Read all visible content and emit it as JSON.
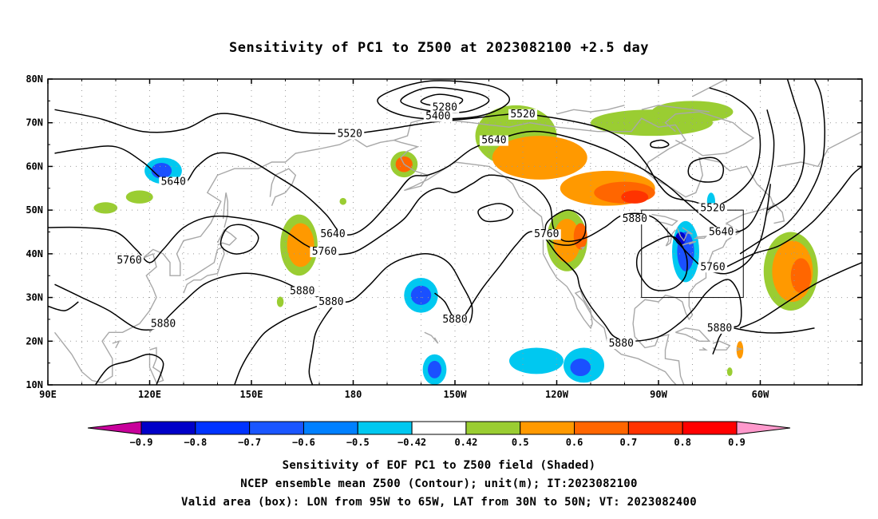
{
  "title": "Sensitivity of PC1 to Z500 at 2023082100 +2.5 day",
  "lat_ticks": [
    "80N",
    "70N",
    "60N",
    "50N",
    "40N",
    "30N",
    "20N",
    "10N"
  ],
  "lon_ticks": [
    "90E",
    "120E",
    "150E",
    "180",
    "150W",
    "120W",
    "90W",
    "60W"
  ],
  "contour_labels": [
    {
      "text": "5280",
      "lon": -153,
      "lat": 73.5
    },
    {
      "text": "5400",
      "lon": -155,
      "lat": 71.5
    },
    {
      "text": "5520",
      "lon": -181,
      "lat": 67.5
    },
    {
      "text": "5520",
      "lon": -130,
      "lat": 72
    },
    {
      "text": "5520",
      "lon": -74,
      "lat": 50.5
    },
    {
      "text": "5640",
      "lon": 127,
      "lat": 56.5
    },
    {
      "text": "5640",
      "lon": 174,
      "lat": 44.5
    },
    {
      "text": "5640",
      "lon": -138.5,
      "lat": 66
    },
    {
      "text": "5640",
      "lon": -71.5,
      "lat": 45
    },
    {
      "text": "5760",
      "lon": 114,
      "lat": 38.5
    },
    {
      "text": "5760",
      "lon": 171.5,
      "lat": 40.5
    },
    {
      "text": "5760",
      "lon": -123,
      "lat": 44.5
    },
    {
      "text": "5760",
      "lon": -74,
      "lat": 37
    },
    {
      "text": "5880",
      "lon": -97,
      "lat": 48
    },
    {
      "text": "5880",
      "lon": 165,
      "lat": 31.5
    },
    {
      "text": "5880",
      "lon": 173.5,
      "lat": 29
    },
    {
      "text": "5880",
      "lon": 124,
      "lat": 24
    },
    {
      "text": "5880",
      "lon": -150,
      "lat": 25
    },
    {
      "text": "5880",
      "lon": -101,
      "lat": 19.5
    },
    {
      "text": "5880",
      "lon": -72,
      "lat": 23
    }
  ],
  "shaded_blobs": [
    {
      "lon": 124,
      "lat": 59,
      "rx": 5.5,
      "ry": 3,
      "color": "#00c8f0"
    },
    {
      "lon": 123.5,
      "lat": 59,
      "rx": 3,
      "ry": 1.8,
      "color": "#1a50ff"
    },
    {
      "lon": 117,
      "lat": 53,
      "rx": 4,
      "ry": 1.5,
      "color": "#9acd32"
    },
    {
      "lon": 107,
      "lat": 50.5,
      "rx": 3.5,
      "ry": 1.3,
      "color": "#9acd32"
    },
    {
      "lon": 164,
      "lat": 42,
      "rx": 5.5,
      "ry": 7,
      "color": "#9acd32"
    },
    {
      "lon": 164.5,
      "lat": 42,
      "rx": 4,
      "ry": 5,
      "color": "#ff9900"
    },
    {
      "lon": -165,
      "lat": 60.5,
      "rx": 4,
      "ry": 3,
      "color": "#9acd32"
    },
    {
      "lon": -165,
      "lat": 60.5,
      "rx": 2.5,
      "ry": 1.8,
      "color": "#ff6600"
    },
    {
      "lon": -160,
      "lat": 30.5,
      "rx": 5,
      "ry": 4,
      "color": "#00c8f0"
    },
    {
      "lon": -160,
      "lat": 30.5,
      "rx": 3,
      "ry": 2.2,
      "color": "#1a50ff"
    },
    {
      "lon": -156,
      "lat": 13.5,
      "rx": 3.5,
      "ry": 3.5,
      "color": "#00c8f0"
    },
    {
      "lon": -156,
      "lat": 13.5,
      "rx": 2,
      "ry": 2,
      "color": "#1a50ff"
    },
    {
      "lon": -126,
      "lat": 15.5,
      "rx": 8,
      "ry": 3,
      "color": "#00c8f0"
    },
    {
      "lon": -112,
      "lat": 14.5,
      "rx": 6,
      "ry": 4,
      "color": "#00c8f0"
    },
    {
      "lon": -113,
      "lat": 14,
      "rx": 3,
      "ry": 2,
      "color": "#1a50ff"
    },
    {
      "lon": -132,
      "lat": 67,
      "rx": 12,
      "ry": 7,
      "color": "#9acd32"
    },
    {
      "lon": -125,
      "lat": 62,
      "rx": 14,
      "ry": 5,
      "color": "#ff9900"
    },
    {
      "lon": -105,
      "lat": 55,
      "rx": 14,
      "ry": 4,
      "color": "#ff9900"
    },
    {
      "lon": -100,
      "lat": 54,
      "rx": 9,
      "ry": 2.5,
      "color": "#ff6600"
    },
    {
      "lon": -97,
      "lat": 53,
      "rx": 4,
      "ry": 1.5,
      "color": "#ff3300"
    },
    {
      "lon": -117,
      "lat": 43,
      "rx": 6,
      "ry": 7,
      "color": "#9acd32"
    },
    {
      "lon": -117,
      "lat": 43,
      "rx": 4,
      "ry": 5,
      "color": "#ff9900"
    },
    {
      "lon": -113,
      "lat": 44,
      "rx": 2,
      "ry": 3,
      "color": "#ff6600"
    },
    {
      "lon": -92,
      "lat": 70,
      "rx": 18,
      "ry": 3,
      "color": "#9acd32"
    },
    {
      "lon": -80,
      "lat": 72.5,
      "rx": 12,
      "ry": 2.5,
      "color": "#9acd32"
    },
    {
      "lon": -82,
      "lat": 40.5,
      "rx": 4,
      "ry": 7,
      "color": "#00c8f0"
    },
    {
      "lon": -82,
      "lat": 40.5,
      "rx": 2.5,
      "ry": 4.5,
      "color": "#1a50ff"
    },
    {
      "lon": -83.5,
      "lat": 43.5,
      "rx": 1.5,
      "ry": 1.5,
      "color": "#0000cc"
    },
    {
      "lon": -74.5,
      "lat": 52,
      "rx": 1.2,
      "ry": 2,
      "color": "#00c8f0"
    },
    {
      "lon": -51,
      "lat": 36,
      "rx": 8,
      "ry": 9,
      "color": "#9acd32"
    },
    {
      "lon": -50.5,
      "lat": 36,
      "rx": 6,
      "ry": 7,
      "color": "#ff9900"
    },
    {
      "lon": -48,
      "lat": 35,
      "rx": 3,
      "ry": 4,
      "color": "#ff6600"
    },
    {
      "lon": 158.5,
      "lat": 29,
      "rx": 1,
      "ry": 1.2,
      "color": "#9acd32"
    },
    {
      "lon": 177,
      "lat": 52,
      "rx": 1,
      "ry": 0.8,
      "color": "#9acd32"
    },
    {
      "lon": -66,
      "lat": 18,
      "rx": 1,
      "ry": 2,
      "color": "#ff9900"
    },
    {
      "lon": -69,
      "lat": 13,
      "rx": 0.8,
      "ry": 1,
      "color": "#9acd32"
    }
  ],
  "valid_box": {
    "lon_min": -95,
    "lon_max": -65,
    "lat_min": 30,
    "lat_max": 50
  },
  "colorbar": {
    "colors": [
      "#c8009b",
      "#0000c8",
      "#0033ff",
      "#1a56ff",
      "#0080ff",
      "#00c8f0",
      "#ffffff",
      "#9acd32",
      "#ff9900",
      "#ff6600",
      "#ff3300",
      "#ff0000",
      "#ff99cc"
    ],
    "labels": [
      "-0.9",
      "-0.8",
      "-0.7",
      "-0.6",
      "-0.5",
      "-0.42",
      "0.42",
      "0.5",
      "0.6",
      "0.7",
      "0.8",
      "0.9"
    ]
  },
  "caption_1": "Sensitivity of EOF PC1 to Z500 field (Shaded)",
  "caption_2": "NCEP ensemble mean Z500 (Contour); unit(m); IT:2023082100",
  "caption_3": "Valid area (box): LON from 95W to 65W, LAT from 30N to 50N; VT: 2023082400"
}
